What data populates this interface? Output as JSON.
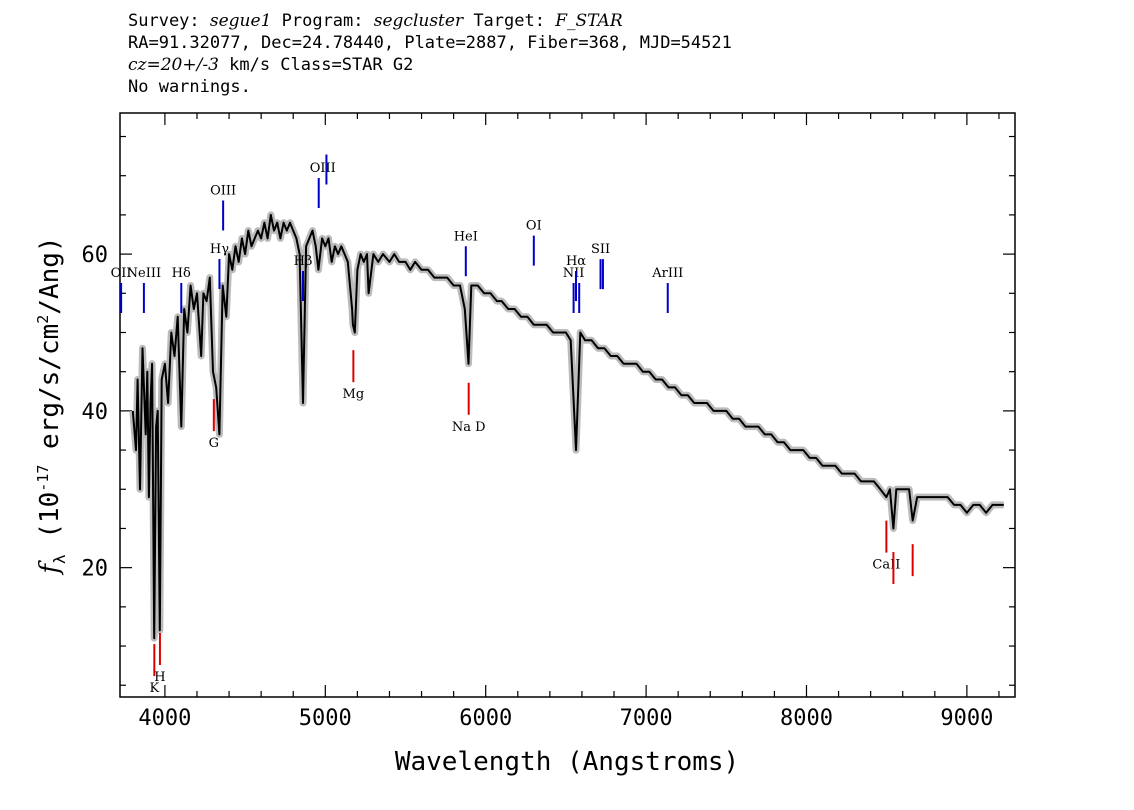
{
  "header": {
    "l1": {
      "k1": "Survey: ",
      "v1": "segue1",
      "k2": " Program: ",
      "v2": "segcluster",
      "k3": " Target: ",
      "v3": "F_STAR"
    },
    "l2": "RA=91.32077, Dec=24.78440, Plate=2887, Fiber=368, MJD=54521",
    "l3": {
      "v": "cz=20+/-3",
      "rest": " km/s Class=STAR G2"
    },
    "l4": "No warnings."
  },
  "chart_data": {
    "type": "line",
    "xlabel": "Wavelength (Angstroms)",
    "ylabel": "f_λ (10^-17 erg/s/cm^2/Ang)",
    "xlim": [
      3720,
      9300
    ],
    "ylim": [
      3.5,
      78
    ],
    "xticks": [
      4000,
      5000,
      6000,
      7000,
      8000,
      9000
    ],
    "yticks": [
      20,
      40,
      60
    ],
    "colors": {
      "spectrum": "#000000",
      "error": "#bbbbbb",
      "emission": "#0000cc",
      "absorption": "#dd0000"
    },
    "series": [
      {
        "values": [
          [
            3800,
            40
          ],
          [
            3820,
            35
          ],
          [
            3830,
            44
          ],
          [
            3845,
            30
          ],
          [
            3860,
            48
          ],
          [
            3880,
            37
          ],
          [
            3890,
            45
          ],
          [
            3900,
            29
          ],
          [
            3910,
            41
          ],
          [
            3920,
            46
          ],
          [
            3933,
            11
          ],
          [
            3945,
            38
          ],
          [
            3955,
            40
          ],
          [
            3968,
            12
          ],
          [
            3980,
            44
          ],
          [
            4000,
            46
          ],
          [
            4020,
            41
          ],
          [
            4040,
            50
          ],
          [
            4060,
            47
          ],
          [
            4080,
            52
          ],
          [
            4102,
            38
          ],
          [
            4120,
            53
          ],
          [
            4140,
            50
          ],
          [
            4160,
            56
          ],
          [
            4180,
            53
          ],
          [
            4200,
            55
          ],
          [
            4226,
            47
          ],
          [
            4240,
            55
          ],
          [
            4260,
            54
          ],
          [
            4280,
            57
          ],
          [
            4300,
            45
          ],
          [
            4320,
            43
          ],
          [
            4340,
            37
          ],
          [
            4360,
            56
          ],
          [
            4383,
            52
          ],
          [
            4400,
            60
          ],
          [
            4420,
            58
          ],
          [
            4440,
            61
          ],
          [
            4460,
            59
          ],
          [
            4480,
            62
          ],
          [
            4500,
            60
          ],
          [
            4520,
            63
          ],
          [
            4540,
            61
          ],
          [
            4560,
            62
          ],
          [
            4580,
            63
          ],
          [
            4600,
            62
          ],
          [
            4620,
            64
          ],
          [
            4640,
            62
          ],
          [
            4660,
            65
          ],
          [
            4680,
            63
          ],
          [
            4700,
            64
          ],
          [
            4720,
            62
          ],
          [
            4740,
            64
          ],
          [
            4760,
            63
          ],
          [
            4780,
            64
          ],
          [
            4800,
            63
          ],
          [
            4820,
            62
          ],
          [
            4840,
            60
          ],
          [
            4861,
            41
          ],
          [
            4880,
            61
          ],
          [
            4900,
            62
          ],
          [
            4920,
            63
          ],
          [
            4940,
            61
          ],
          [
            4957,
            58
          ],
          [
            4980,
            62
          ],
          [
            5000,
            61
          ],
          [
            5020,
            62
          ],
          [
            5040,
            59
          ],
          [
            5060,
            61
          ],
          [
            5080,
            60
          ],
          [
            5100,
            61
          ],
          [
            5120,
            60
          ],
          [
            5140,
            59
          ],
          [
            5167,
            53
          ],
          [
            5172,
            51
          ],
          [
            5184,
            50
          ],
          [
            5200,
            58
          ],
          [
            5220,
            60
          ],
          [
            5240,
            59
          ],
          [
            5260,
            60
          ],
          [
            5270,
            55
          ],
          [
            5300,
            60
          ],
          [
            5330,
            59
          ],
          [
            5360,
            60
          ],
          [
            5400,
            59
          ],
          [
            5430,
            60
          ],
          [
            5460,
            59
          ],
          [
            5500,
            59
          ],
          [
            5530,
            58
          ],
          [
            5560,
            59
          ],
          [
            5600,
            58
          ],
          [
            5640,
            58
          ],
          [
            5680,
            57
          ],
          [
            5720,
            57
          ],
          [
            5760,
            57
          ],
          [
            5800,
            56
          ],
          [
            5840,
            56
          ],
          [
            5870,
            53
          ],
          [
            5893,
            46
          ],
          [
            5910,
            56
          ],
          [
            5950,
            56
          ],
          [
            5990,
            55
          ],
          [
            6030,
            55
          ],
          [
            6070,
            54
          ],
          [
            6100,
            54
          ],
          [
            6140,
            53
          ],
          [
            6180,
            53
          ],
          [
            6220,
            52
          ],
          [
            6260,
            52
          ],
          [
            6300,
            51
          ],
          [
            6340,
            51
          ],
          [
            6380,
            51
          ],
          [
            6420,
            50
          ],
          [
            6460,
            50
          ],
          [
            6500,
            50
          ],
          [
            6530,
            49
          ],
          [
            6563,
            35
          ],
          [
            6590,
            50
          ],
          [
            6620,
            49
          ],
          [
            6660,
            49
          ],
          [
            6700,
            48
          ],
          [
            6740,
            48
          ],
          [
            6780,
            47
          ],
          [
            6820,
            47
          ],
          [
            6860,
            46
          ],
          [
            6900,
            46
          ],
          [
            6940,
            46
          ],
          [
            6980,
            45
          ],
          [
            7020,
            45
          ],
          [
            7060,
            44
          ],
          [
            7100,
            44
          ],
          [
            7140,
            43
          ],
          [
            7180,
            43
          ],
          [
            7220,
            42
          ],
          [
            7260,
            42
          ],
          [
            7300,
            41
          ],
          [
            7340,
            41
          ],
          [
            7380,
            41
          ],
          [
            7420,
            40
          ],
          [
            7460,
            40
          ],
          [
            7500,
            40
          ],
          [
            7540,
            39
          ],
          [
            7580,
            39
          ],
          [
            7620,
            38
          ],
          [
            7660,
            38
          ],
          [
            7700,
            38
          ],
          [
            7740,
            37
          ],
          [
            7780,
            37
          ],
          [
            7820,
            36
          ],
          [
            7860,
            36
          ],
          [
            7900,
            35
          ],
          [
            7940,
            35
          ],
          [
            7980,
            35
          ],
          [
            8020,
            34
          ],
          [
            8060,
            34
          ],
          [
            8100,
            33
          ],
          [
            8140,
            33
          ],
          [
            8180,
            33
          ],
          [
            8220,
            32
          ],
          [
            8260,
            32
          ],
          [
            8300,
            32
          ],
          [
            8340,
            31
          ],
          [
            8380,
            31
          ],
          [
            8420,
            31
          ],
          [
            8460,
            30
          ],
          [
            8498,
            29
          ],
          [
            8520,
            30
          ],
          [
            8542,
            25
          ],
          [
            8560,
            30
          ],
          [
            8600,
            30
          ],
          [
            8640,
            30
          ],
          [
            8662,
            26
          ],
          [
            8690,
            29
          ],
          [
            8720,
            29
          ],
          [
            8760,
            29
          ],
          [
            8800,
            29
          ],
          [
            8840,
            29
          ],
          [
            8880,
            29
          ],
          [
            8920,
            28
          ],
          [
            8960,
            28
          ],
          [
            9000,
            27
          ],
          [
            9040,
            28
          ],
          [
            9080,
            28
          ],
          [
            9120,
            27
          ],
          [
            9160,
            28
          ],
          [
            9200,
            28
          ],
          [
            9230,
            28
          ]
        ]
      }
    ],
    "lines": {
      "emission": [
        {
          "label": "OII",
          "wave": 3727
        },
        {
          "label": "NeIII",
          "wave": 3869
        },
        {
          "label": "Hδ",
          "wave": 4102
        },
        {
          "label": "Hγ",
          "wave": 4340
        },
        {
          "label": "OIII",
          "wave": 4363
        },
        {
          "label": "Hβ",
          "wave": 4861
        },
        {
          "label": "OIII",
          "wave": 4959
        },
        {
          "label": "OIII",
          "wave": 5007
        },
        {
          "label": "HeI",
          "wave": 5876
        },
        {
          "label": "OI",
          "wave": 6300
        },
        {
          "label": "NII",
          "wave": 6548
        },
        {
          "label": "Hα",
          "wave": 6563
        },
        {
          "label": "NII",
          "wave": 6583
        },
        {
          "label": "SII",
          "wave": 6716
        },
        {
          "label": "SII",
          "wave": 6731
        },
        {
          "label": "ArIII",
          "wave": 7135
        }
      ],
      "absorption": [
        {
          "label": "K",
          "wave": 3934
        },
        {
          "label": "H",
          "wave": 3969
        },
        {
          "label": "G",
          "wave": 4305
        },
        {
          "label": "Mg",
          "wave": 5175
        },
        {
          "label": "Na D",
          "wave": 5894
        },
        {
          "label": "CaII",
          "wave": 8498
        },
        {
          "label": "CaII",
          "wave": 8542
        },
        {
          "label": "CaII",
          "wave": 8662
        }
      ]
    }
  }
}
